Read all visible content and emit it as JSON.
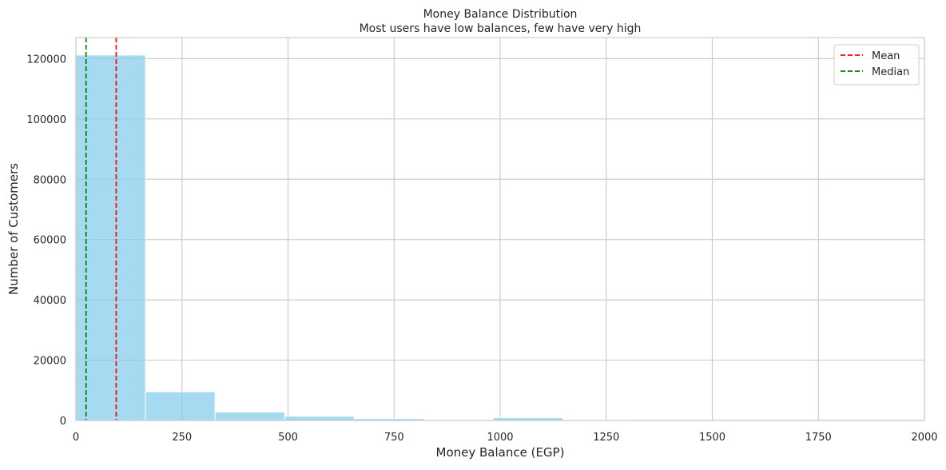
{
  "chart_data": {
    "type": "histogram",
    "title": "Money Balance Distribution",
    "subtitle": "Most users have low balances, few have very high",
    "xlabel": "Money Balance (EGP)",
    "ylabel": "Number of Customers",
    "xlim": [
      0,
      2000
    ],
    "ylim": [
      0,
      127000
    ],
    "xticks": [
      0,
      250,
      500,
      750,
      1000,
      1250,
      1500,
      1750,
      2000
    ],
    "yticks": [
      0,
      20000,
      40000,
      60000,
      80000,
      100000,
      120000
    ],
    "grid": true,
    "bar_color": "#87ceeb",
    "bins": [
      {
        "x0": 0,
        "x1": 164,
        "count": 121200
      },
      {
        "x0": 164,
        "x1": 328,
        "count": 9500
      },
      {
        "x0": 328,
        "x1": 492,
        "count": 2800
      },
      {
        "x0": 492,
        "x1": 656,
        "count": 1400
      },
      {
        "x0": 656,
        "x1": 820,
        "count": 600
      },
      {
        "x0": 820,
        "x1": 984,
        "count": 150
      },
      {
        "x0": 984,
        "x1": 1148,
        "count": 900
      },
      {
        "x0": 1148,
        "x1": 1312,
        "count": 100
      },
      {
        "x0": 1312,
        "x1": 1476,
        "count": 30
      },
      {
        "x0": 1476,
        "x1": 1640,
        "count": 20
      },
      {
        "x0": 1640,
        "x1": 1804,
        "count": 10
      },
      {
        "x0": 1804,
        "x1": 1968,
        "count": 10
      }
    ],
    "reference_lines": [
      {
        "name": "Mean",
        "x": 95,
        "color": "#ff0000",
        "style": "dashed"
      },
      {
        "name": "Median",
        "x": 24,
        "color": "#008000",
        "style": "dashed"
      }
    ],
    "legend": {
      "placement": "top-right",
      "entries": [
        "Mean",
        "Median"
      ]
    }
  }
}
